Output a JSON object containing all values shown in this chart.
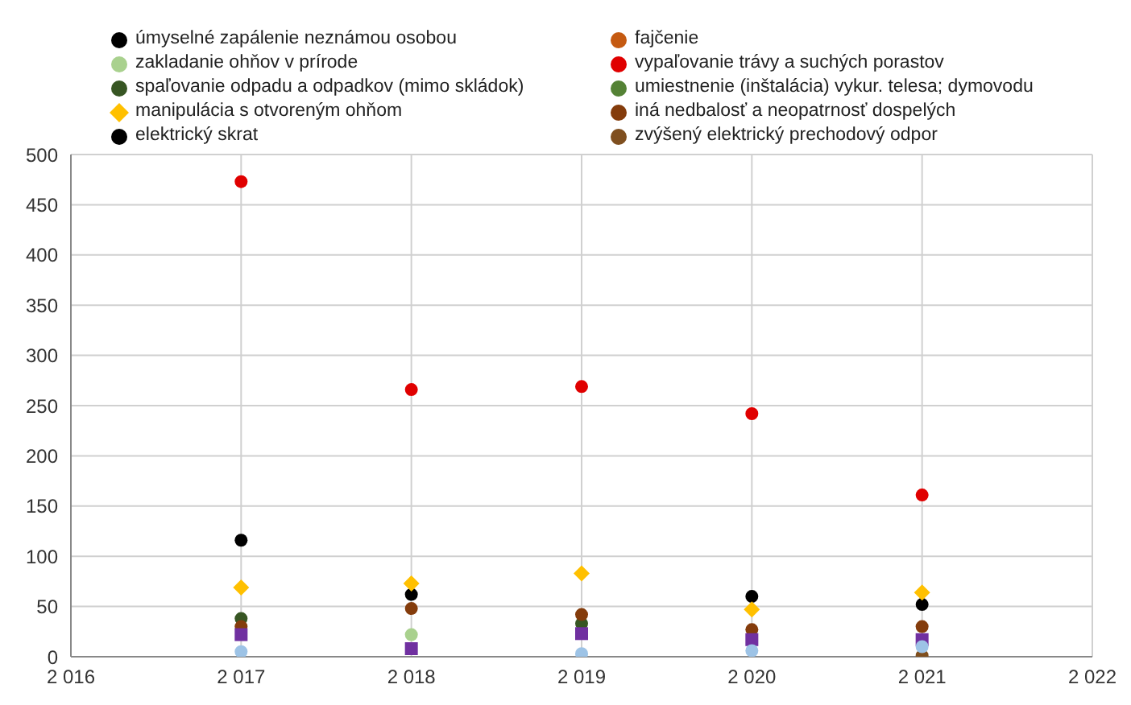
{
  "chart_data": {
    "type": "scatter",
    "xlim": [
      2016,
      2022
    ],
    "xticks": [
      {
        "value": 2016,
        "label": "2 016"
      },
      {
        "value": 2017,
        "label": "2 017"
      },
      {
        "value": 2018,
        "label": "2 018"
      },
      {
        "value": 2019,
        "label": "2 019"
      },
      {
        "value": 2020,
        "label": "2 020"
      },
      {
        "value": 2021,
        "label": "2 021"
      },
      {
        "value": 2022,
        "label": "2 022"
      }
    ],
    "ylim": [
      0,
      500
    ],
    "yticks": [
      0,
      50,
      100,
      150,
      200,
      250,
      300,
      350,
      400,
      450,
      500
    ],
    "grid": true,
    "legend": "top",
    "x": [
      2017,
      2018,
      2019,
      2020,
      2021
    ],
    "series": [
      {
        "name": "úmyselné zapálenie neznámou osobou",
        "color": "#000000",
        "marker": "circle",
        "values": [
          116,
          62,
          null,
          60,
          52
        ]
      },
      {
        "name": "fajčenie",
        "color": "#c55a11",
        "marker": "circle",
        "values": [
          null,
          null,
          null,
          null,
          null
        ]
      },
      {
        "name": "zakladanie ohňov v prírode",
        "color": "#a9d18e",
        "marker": "circle",
        "values": [
          null,
          22,
          null,
          null,
          null
        ]
      },
      {
        "name": "vypaľovanie trávy a suchých porastov",
        "color": "#e00000",
        "marker": "circle",
        "values": [
          473,
          266,
          269,
          242,
          161
        ]
      },
      {
        "name": "spaľovanie odpadu a odpadkov (mimo skládok)",
        "color": "#375623",
        "marker": "circle",
        "values": [
          38,
          null,
          33,
          null,
          null
        ]
      },
      {
        "name": "umiestnenie (inštalácia) vykur. telesa; dymovodu",
        "color": "#548235",
        "marker": "circle",
        "values": [
          null,
          null,
          null,
          null,
          null
        ]
      },
      {
        "name": "manipulácia s otvoreným ohňom",
        "color": "#ffc000",
        "marker": "diamond",
        "values": [
          69,
          73,
          83,
          47,
          64
        ]
      },
      {
        "name": "iná nedbalosť a neopatrnosť dospelých",
        "color": "#843c0c",
        "marker": "circle",
        "values": [
          30,
          48,
          42,
          27,
          30
        ]
      },
      {
        "name": "elektrický skrat",
        "color": "#000000",
        "marker": "circle",
        "values": [
          null,
          null,
          null,
          null,
          null
        ]
      },
      {
        "name": "zvýšený elektrický prechodový odpor",
        "color": "#7f4f1f",
        "marker": "circle",
        "values": [
          null,
          null,
          null,
          null,
          1
        ]
      },
      {
        "color": "#7030a0",
        "marker": "square",
        "values": [
          22,
          8,
          23,
          17,
          17
        ]
      },
      {
        "color": "#9dc3e6",
        "marker": "circle",
        "values": [
          5,
          null,
          3,
          6,
          10
        ]
      }
    ]
  }
}
